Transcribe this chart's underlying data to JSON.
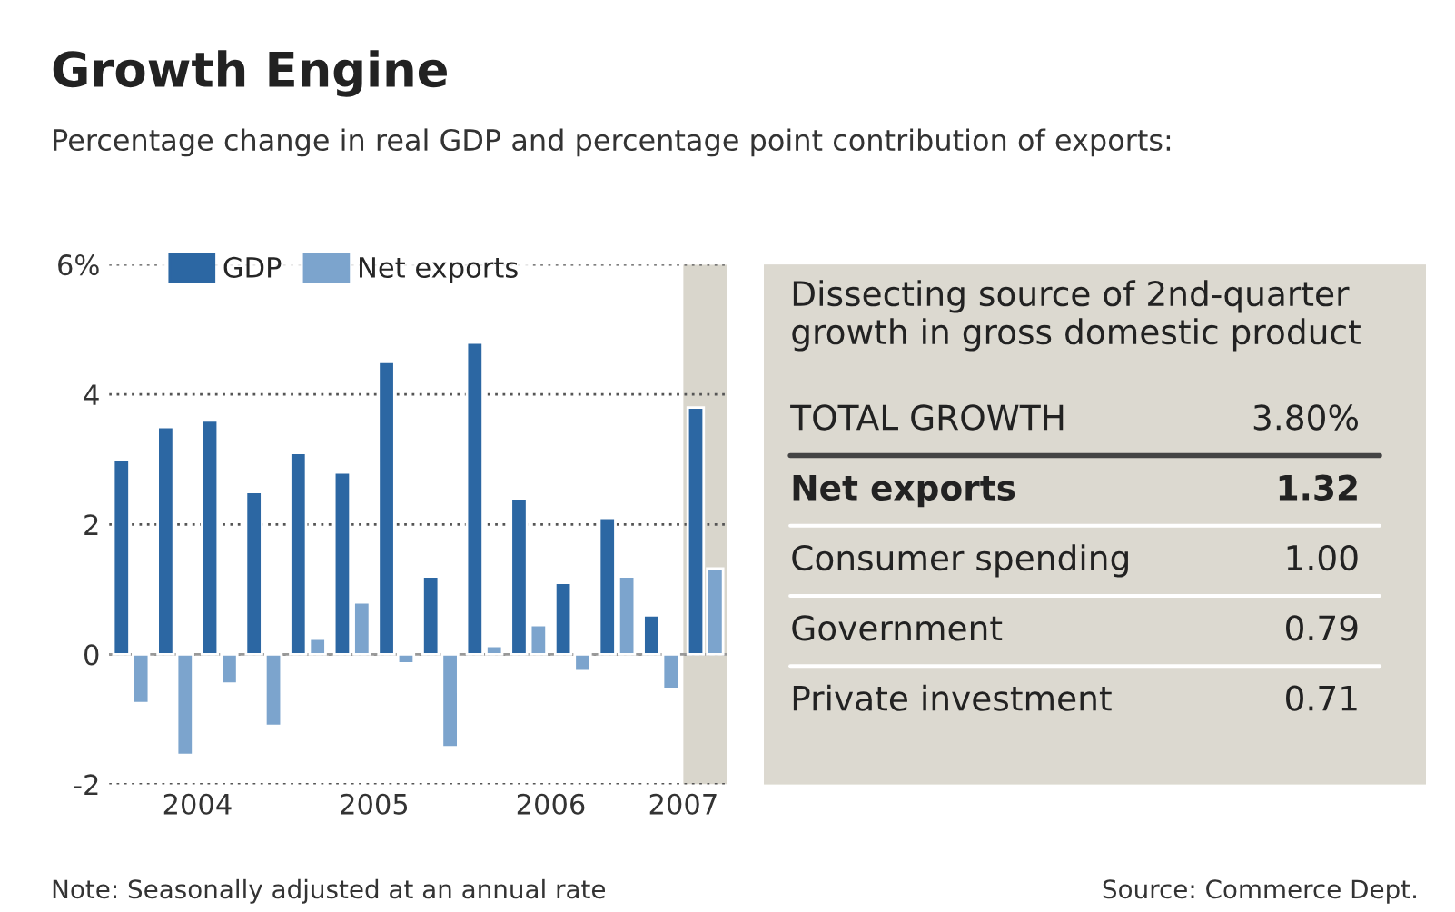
{
  "chart_data": [
    {
      "type": "bar",
      "title": "Growth Engine",
      "subtitle": "Percentage change in real GDP and percentage point contribution of exports:",
      "x": [
        2004.125,
        2004.375,
        2004.625,
        2004.875,
        2005.125,
        2005.375,
        2005.625,
        2005.875,
        2006.125,
        2006.375,
        2006.625,
        2006.875,
        2007.125,
        2007.375
      ],
      "series": [
        {
          "name": "GDP",
          "color": "#2c67a3",
          "values": [
            3.0,
            3.5,
            3.6,
            2.5,
            3.1,
            2.8,
            4.5,
            1.2,
            4.8,
            2.4,
            1.1,
            2.1,
            0.6,
            3.8
          ]
        },
        {
          "name": "Net exports",
          "color": "#7ca4cd",
          "values": [
            -0.75,
            -1.55,
            -0.45,
            -1.1,
            0.24,
            0.8,
            -0.14,
            -1.43,
            0.13,
            0.45,
            -0.26,
            1.2,
            -0.53,
            1.32
          ]
        }
      ],
      "xlim": [
        2004.0,
        2007.5
      ],
      "xticks": [
        {
          "value": 2004.5,
          "label": "2004"
        },
        {
          "value": 2005.5,
          "label": "2005"
        },
        {
          "value": 2006.5,
          "label": "2006"
        },
        {
          "value": 2007.25,
          "label": "2007"
        }
      ],
      "ylim": [
        -2,
        6
      ],
      "yticks": [
        -2,
        0,
        2,
        4,
        {
          "value": 6,
          "label": "6%"
        }
      ],
      "bands": [
        {
          "axis": "x",
          "from": 2007.25,
          "to": 2007.5,
          "color": "#d9d6cc"
        }
      ],
      "grid": "y",
      "legend": "top left",
      "annotations": [
        "Note: Seasonally adjusted at an annual rate",
        "Source: Commerce Dept."
      ]
    },
    {
      "type": "other",
      "title": "Dissecting source of 2nd-quarter growth in gross domestic product",
      "categories": [
        "TOTAL GROWTH",
        "Net exports",
        "Consumer spending",
        "Government",
        "Private investment"
      ],
      "value_labels": [
        "3.80%",
        "1.32",
        "1.00",
        "0.79",
        "0.71"
      ]
    }
  ]
}
